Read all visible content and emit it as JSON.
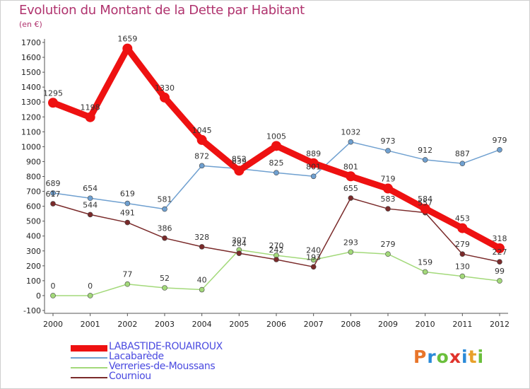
{
  "title": "Evolution du Montant de la Dette par Habitant",
  "subtitle": "(en €)",
  "logo": {
    "text": "Proxiti",
    "letters": [
      "P",
      "r",
      "o",
      "x",
      "i",
      "t",
      "i"
    ],
    "colors": [
      "#e8752a",
      "#2a8ad8",
      "#6abf3b",
      "#e0332c",
      "#2a8ad8",
      "#e8a02a",
      "#6abf3b"
    ]
  },
  "chart_data": {
    "type": "line",
    "x": [
      "2000",
      "2001",
      "2002",
      "2003",
      "2004",
      "2005",
      "2006",
      "2007",
      "2008",
      "2009",
      "2010",
      "2011",
      "2012"
    ],
    "ylim": [
      -100,
      1700
    ],
    "yticks": [
      -100,
      0,
      100,
      200,
      300,
      400,
      500,
      600,
      700,
      800,
      900,
      1000,
      1100,
      1200,
      1300,
      1400,
      1500,
      1600,
      1700
    ],
    "grid": false,
    "legend_position": "bottom-left",
    "series": [
      {
        "name": "LABASTIDE-ROUAIROUX",
        "color": "#ee1111",
        "values": [
          1295,
          1198,
          1659,
          1330,
          1045,
          839,
          1005,
          889,
          801,
          719,
          584,
          453,
          318
        ]
      },
      {
        "name": "Lacabarède",
        "color": "#6fa0d0",
        "values": [
          689,
          654,
          619,
          581,
          872,
          852,
          825,
          801,
          1032,
          973,
          912,
          887,
          979
        ]
      },
      {
        "name": "Verreries-de-Moussans",
        "color": "#a3d97a",
        "values": [
          0,
          0,
          77,
          52,
          40,
          307,
          270,
          240,
          293,
          279,
          159,
          130,
          99
        ]
      },
      {
        "name": "Courniou",
        "color": "#7a2a2a",
        "values": [
          617,
          544,
          491,
          386,
          328,
          284,
          242,
          193,
          655,
          583,
          557,
          279,
          227
        ]
      }
    ]
  }
}
